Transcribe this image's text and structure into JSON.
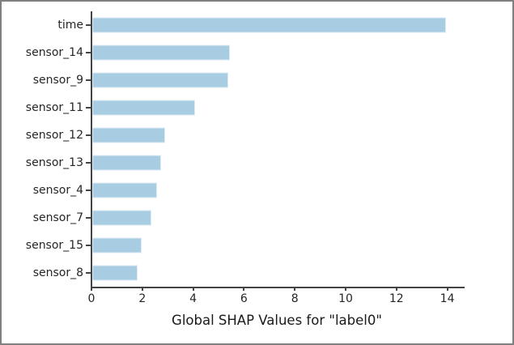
{
  "frame": {
    "border_color": "#808080",
    "background_color": "#ffffff"
  },
  "chart_data": {
    "type": "bar",
    "orientation": "horizontal",
    "title": "",
    "xlabel": "Global SHAP Values for \"label0\"",
    "ylabel": "",
    "categories": [
      "time",
      "sensor_14",
      "sensor_9",
      "sensor_11",
      "sensor_12",
      "sensor_13",
      "sensor_4",
      "sensor_7",
      "sensor_15",
      "sensor_8"
    ],
    "values": [
      13.93,
      5.42,
      5.35,
      4.03,
      2.87,
      2.72,
      2.56,
      2.31,
      1.94,
      1.79
    ],
    "xticks": [
      0,
      2,
      4,
      6,
      8,
      10,
      12,
      14
    ],
    "xlim": [
      0,
      14.65
    ],
    "grid": false,
    "legend": null,
    "bar_color": "#a8cde2",
    "bar_edge_color": "#ddebf5",
    "axis_color": "#444444",
    "text_color": "#262626"
  }
}
